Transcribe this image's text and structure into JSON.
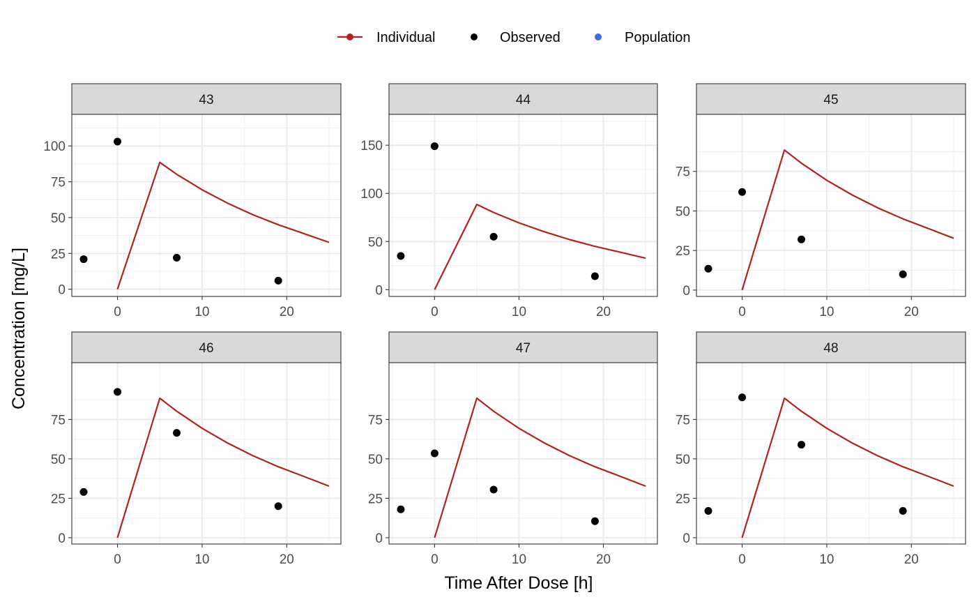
{
  "chart_data": {
    "type": "line",
    "xlabel": "Time After Dose [h]",
    "ylabel": "Concentration [mg/L]",
    "xlim": [
      -5.4,
      26.4
    ],
    "x_ticks": [
      0,
      10,
      20
    ],
    "legend": {
      "placement": "top",
      "entries": [
        {
          "label": "Individual",
          "color": "#b22222",
          "kind": "line-point"
        },
        {
          "label": "Observed",
          "color": "#000000",
          "kind": "point"
        },
        {
          "label": "Population",
          "color": "#4169e1",
          "kind": "point"
        }
      ]
    },
    "grid": true,
    "individual_x": [
      0,
      5,
      7,
      10,
      13,
      16,
      19,
      22,
      25
    ],
    "individual_y": [
      0,
      88.5,
      80.2,
      69.4,
      60.1,
      52.0,
      45.0,
      38.9,
      32.7
    ],
    "panels": [
      {
        "label": "43",
        "ylim": [
          -5,
          122
        ],
        "y_ticks": [
          0,
          25,
          50,
          75,
          100
        ],
        "observed": [
          {
            "x": -4,
            "y": 21
          },
          {
            "x": 0,
            "y": 103
          },
          {
            "x": 7,
            "y": 22
          },
          {
            "x": 19,
            "y": 6
          }
        ]
      },
      {
        "label": "44",
        "ylim": [
          -7,
          182
        ],
        "y_ticks": [
          0,
          50,
          100,
          150
        ],
        "observed": [
          {
            "x": -4,
            "y": 35
          },
          {
            "x": 0,
            "y": 149
          },
          {
            "x": 7,
            "y": 55
          },
          {
            "x": 19,
            "y": 14
          }
        ]
      },
      {
        "label": "45",
        "ylim": [
          -4,
          111
        ],
        "y_ticks": [
          0,
          25,
          50,
          75
        ],
        "observed": [
          {
            "x": -4,
            "y": 13.5
          },
          {
            "x": 0,
            "y": 62
          },
          {
            "x": 7,
            "y": 32
          },
          {
            "x": 19,
            "y": 10
          }
        ]
      },
      {
        "label": "46",
        "ylim": [
          -4,
          111
        ],
        "y_ticks": [
          0,
          25,
          50,
          75
        ],
        "observed": [
          {
            "x": -4,
            "y": 29
          },
          {
            "x": 0,
            "y": 92.5
          },
          {
            "x": 7,
            "y": 66.5
          },
          {
            "x": 19,
            "y": 20
          }
        ]
      },
      {
        "label": "47",
        "ylim": [
          -4,
          111
        ],
        "y_ticks": [
          0,
          25,
          50,
          75
        ],
        "observed": [
          {
            "x": -4,
            "y": 18
          },
          {
            "x": 0,
            "y": 53.5
          },
          {
            "x": 7,
            "y": 30.5
          },
          {
            "x": 19,
            "y": 10.5
          }
        ]
      },
      {
        "label": "48",
        "ylim": [
          -4,
          111
        ],
        "y_ticks": [
          0,
          25,
          50,
          75
        ],
        "observed": [
          {
            "x": -4,
            "y": 17
          },
          {
            "x": 0,
            "y": 89
          },
          {
            "x": 7,
            "y": 59
          },
          {
            "x": 19,
            "y": 17
          }
        ]
      }
    ]
  }
}
